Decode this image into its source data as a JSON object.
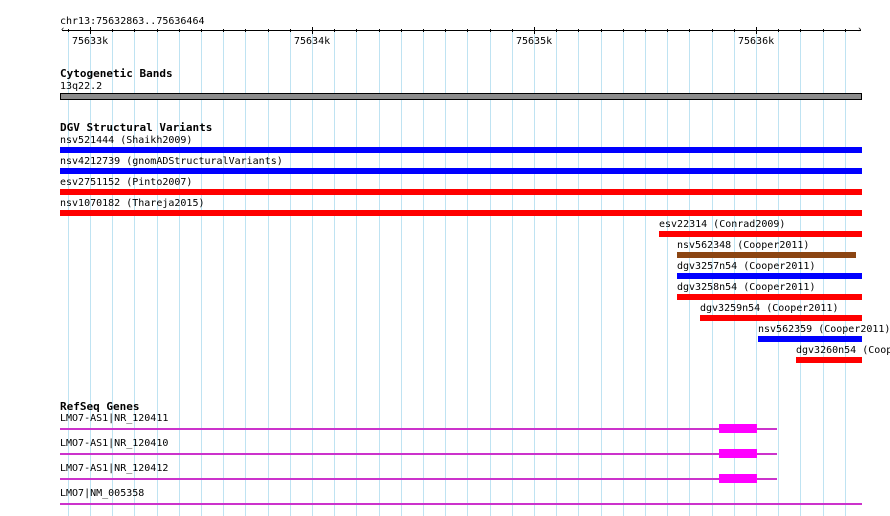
{
  "ruler": {
    "location": "chr13:75632863..75636464",
    "ticks": [
      "75633k",
      "75634k",
      "75635k",
      "75636k"
    ]
  },
  "cytoband": {
    "title": "Cytogenetic Bands",
    "band": "13q22.2",
    "color": "#8c8c8c"
  },
  "dgv": {
    "title": "DGV Structural Variants",
    "variants": [
      {
        "label": "nsv521444 (Shaikh2009)",
        "color": "#0000ff"
      },
      {
        "label": "nsv4212739 (gnomADStructuralVariants)",
        "color": "#0000ff"
      },
      {
        "label": "esv2751152 (Pinto2007)",
        "color": "#ff0000"
      },
      {
        "label": "nsv1070182 (Thareja2015)",
        "color": "#ff0000"
      },
      {
        "label": "esv22314 (Conrad2009)",
        "color": "#ff0000"
      },
      {
        "label": "nsv562348 (Cooper2011)",
        "color": "#8b4513"
      },
      {
        "label": "dgv3257n54 (Cooper2011)",
        "color": "#0000ff"
      },
      {
        "label": "dgv3258n54 (Cooper2011)",
        "color": "#ff0000"
      },
      {
        "label": "dgv3259n54 (Cooper2011)",
        "color": "#ff0000"
      },
      {
        "label": "nsv562359 (Cooper2011)",
        "color": "#0000ff"
      },
      {
        "label": "dgv3260n54 (Coop",
        "color": "#ff0000"
      }
    ]
  },
  "refseq": {
    "title": "RefSeq Genes",
    "color": "#ff00ff",
    "genes": [
      {
        "label": "LMO7-AS1|NR_120411"
      },
      {
        "label": "LMO7-AS1|NR_120410"
      },
      {
        "label": "LMO7-AS1|NR_120412"
      },
      {
        "label": "LMO7|NM_005358"
      }
    ]
  }
}
